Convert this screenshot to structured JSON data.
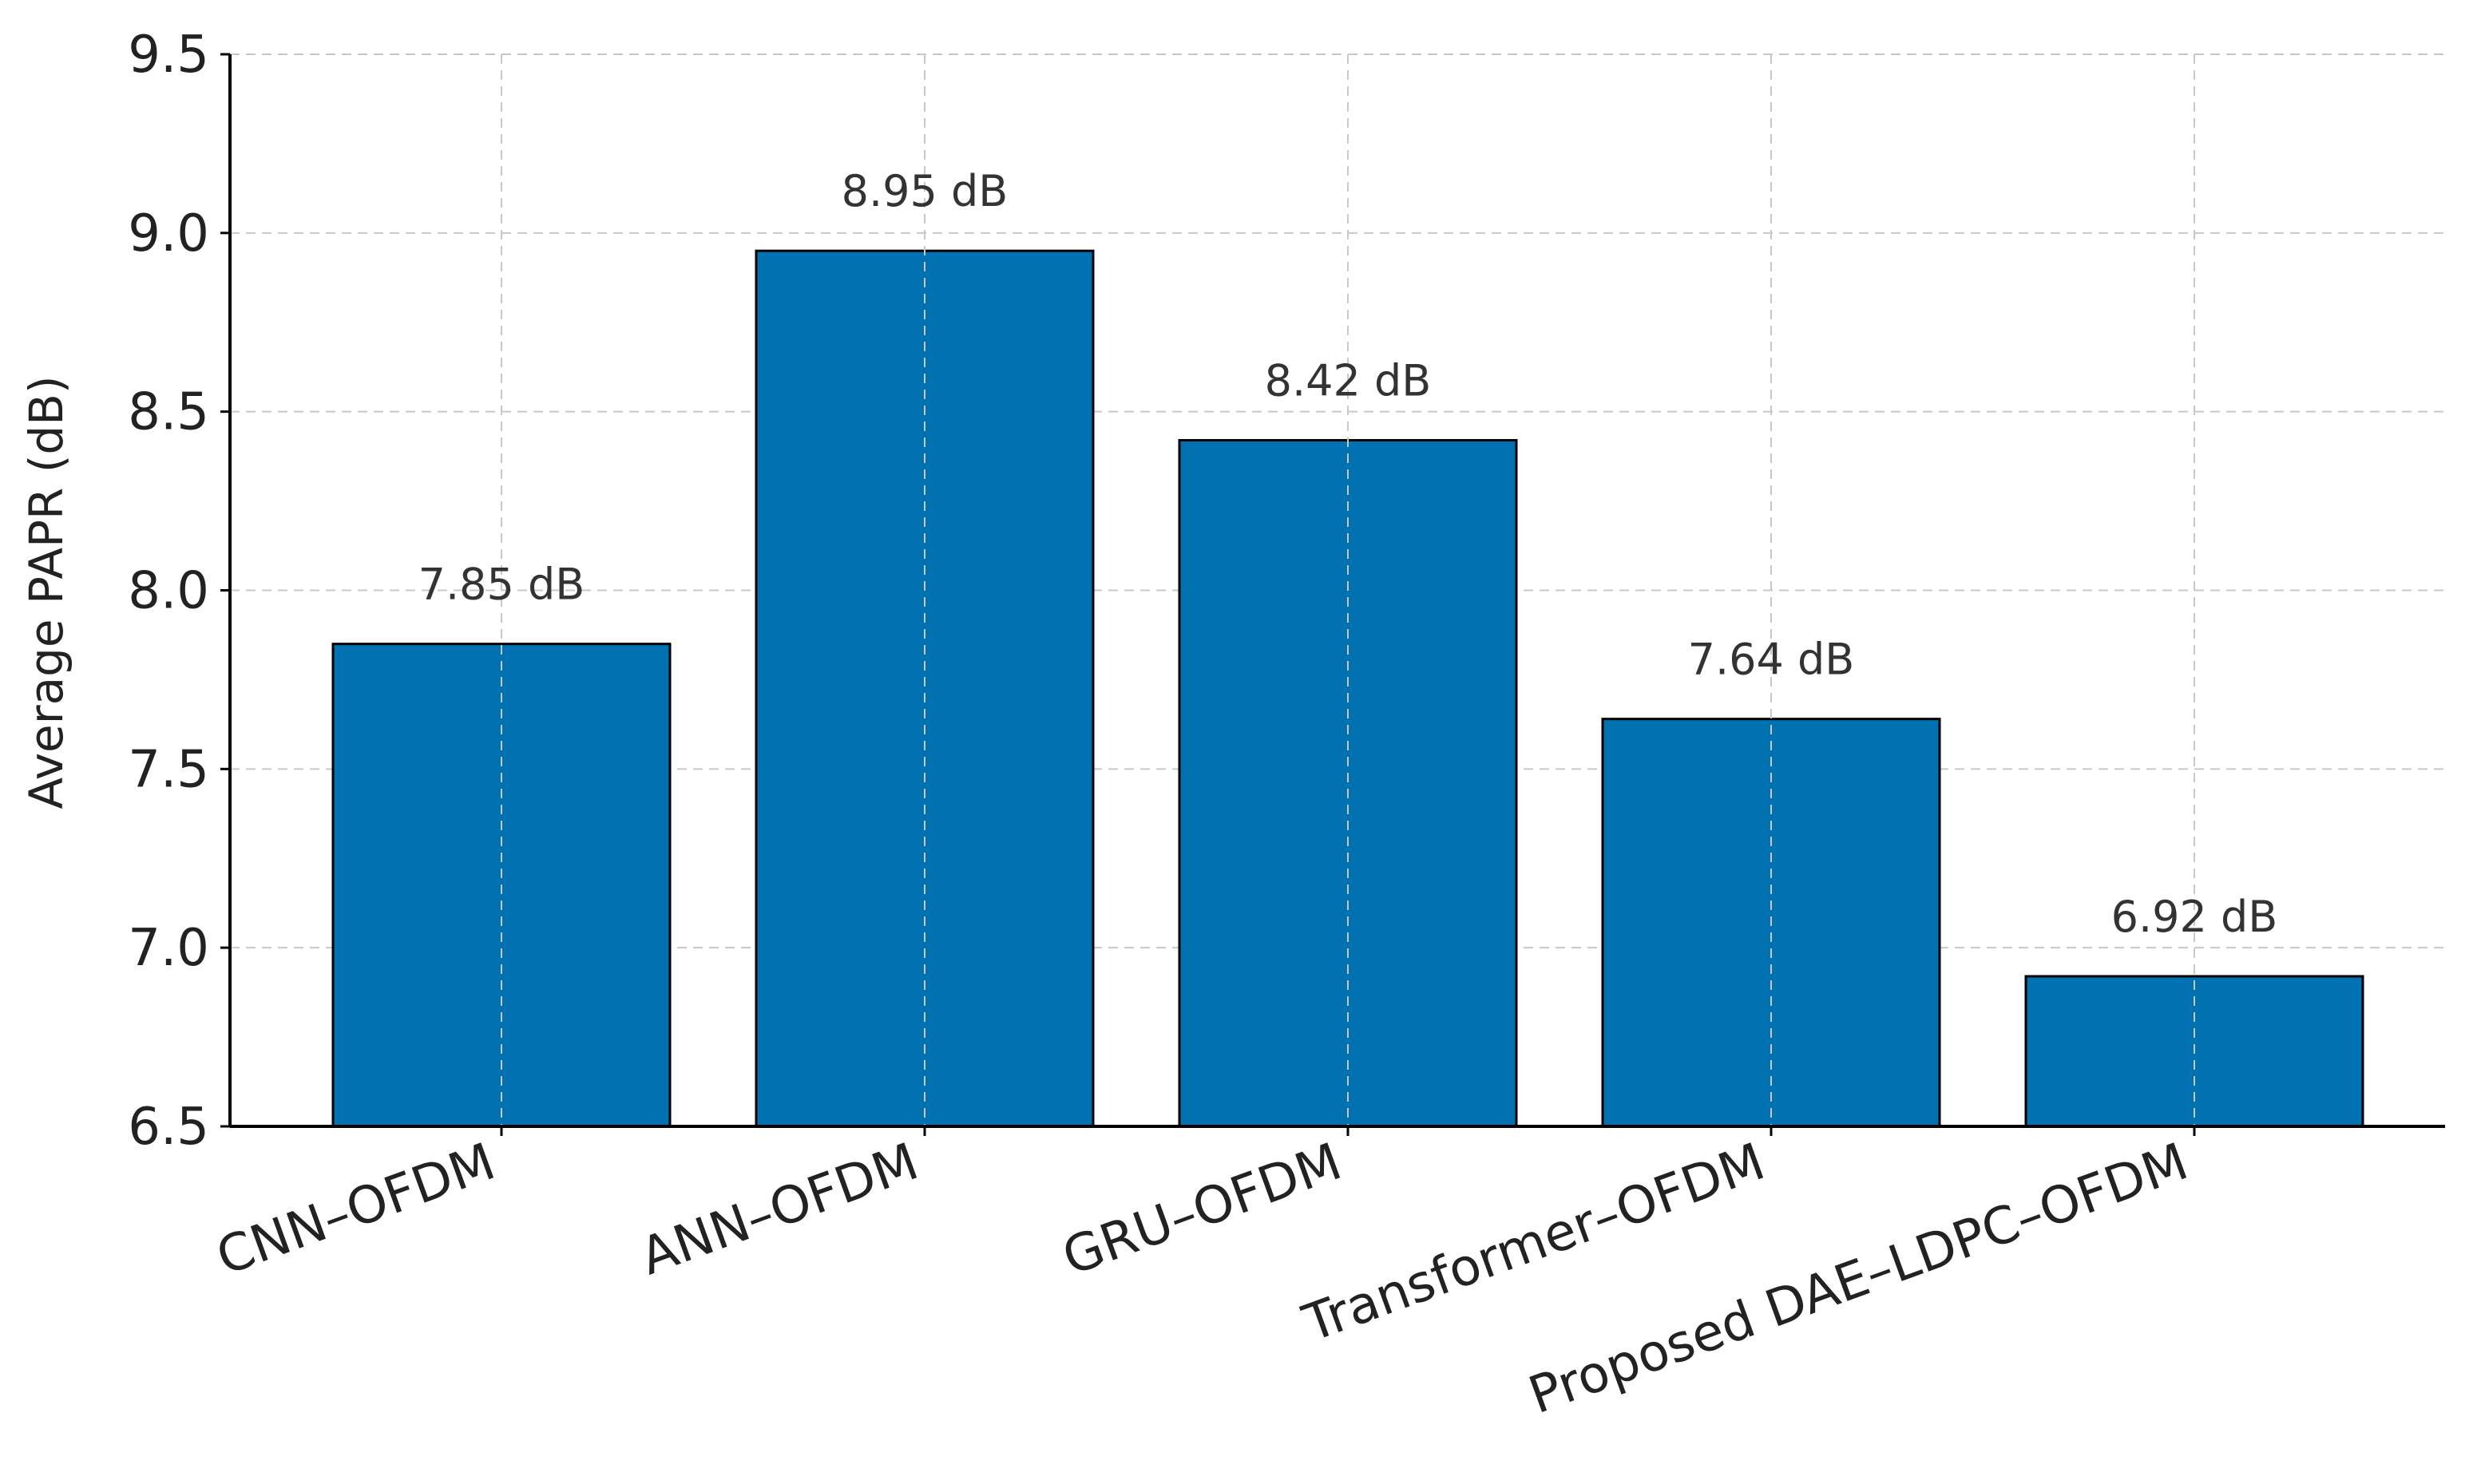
{
  "chart_data": {
    "type": "bar",
    "title": "",
    "xlabel": "",
    "ylabel": "Average PAPR (dB)",
    "categories": [
      "CNN–OFDM",
      "ANN–OFDM",
      "GRU–OFDM",
      "Transformer–OFDM",
      "Proposed DAE–LDPC–OFDM"
    ],
    "values": [
      7.85,
      8.95,
      8.42,
      7.64,
      6.92
    ],
    "data_labels": [
      "7.85 dB",
      "8.95 dB",
      "8.42 dB",
      "7.64 dB",
      "6.92 dB"
    ],
    "ylim": [
      6.5,
      9.5
    ],
    "yticks": [
      6.5,
      7.0,
      7.5,
      8.0,
      8.5,
      9.0,
      9.5
    ],
    "ytick_labels": [
      "6.5",
      "7.0",
      "7.5",
      "8.0",
      "8.5",
      "9.0",
      "9.5"
    ],
    "grid": true,
    "legend": "none",
    "bar_color": "#0072B2",
    "x_tick_rotation_deg": 20
  }
}
